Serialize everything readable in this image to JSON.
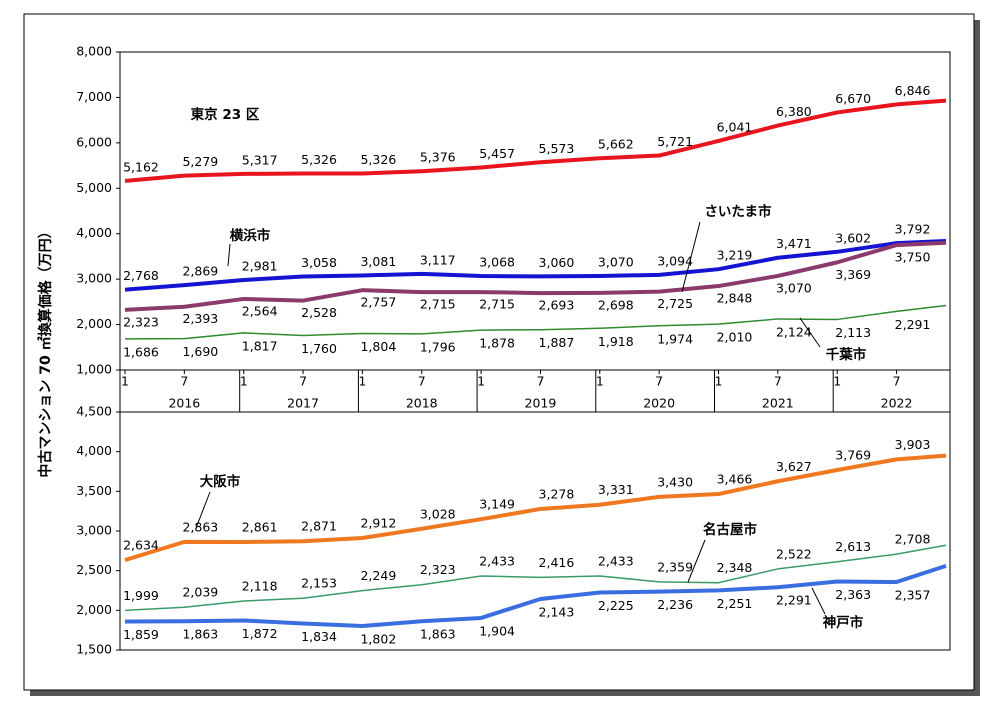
{
  "ylabel": "中古マンション 70 ㎡換算価格（万円）",
  "chart_data": [
    {
      "type": "line",
      "xlim": [
        "2016-01",
        "2022-12"
      ],
      "x": [
        "2016-01",
        "2016-07",
        "2017-01",
        "2017-07",
        "2018-01",
        "2018-07",
        "2019-01",
        "2019-07",
        "2020-01",
        "2020-07",
        "2021-01",
        "2021-07",
        "2022-01",
        "2022-07",
        "2022-12"
      ],
      "xticks": [
        {
          "value": "2016-01",
          "label": "1"
        },
        {
          "value": "2016-07",
          "label": "7"
        },
        {
          "value": "2017-01",
          "label": "1"
        },
        {
          "value": "2017-07",
          "label": "7"
        },
        {
          "value": "2018-01",
          "label": "1"
        },
        {
          "value": "2018-07",
          "label": "7"
        },
        {
          "value": "2019-01",
          "label": "1"
        },
        {
          "value": "2019-07",
          "label": "7"
        },
        {
          "value": "2020-01",
          "label": "1"
        },
        {
          "value": "2020-07",
          "label": "7"
        },
        {
          "value": "2021-01",
          "label": "1"
        },
        {
          "value": "2021-07",
          "label": "7"
        },
        {
          "value": "2022-01",
          "label": "1"
        },
        {
          "value": "2022-07",
          "label": "7"
        }
      ],
      "year_ticks": [
        {
          "value": "2016-01",
          "label": "2016"
        },
        {
          "value": "2017-01",
          "label": "2017"
        },
        {
          "value": "2018-01",
          "label": "2018"
        },
        {
          "value": "2019-01",
          "label": "2019"
        },
        {
          "value": "2020-01",
          "label": "2020"
        },
        {
          "value": "2021-01",
          "label": "2021"
        },
        {
          "value": "2022-01",
          "label": "2022"
        }
      ],
      "ylim": [
        1000,
        8000
      ],
      "yticks": [
        {
          "value": 1000,
          "label": "1,000"
        },
        {
          "value": 2000,
          "label": "2,000"
        },
        {
          "value": 3000,
          "label": "3,000"
        },
        {
          "value": 4000,
          "label": "4,000"
        },
        {
          "value": 5000,
          "label": "5,000"
        },
        {
          "value": 6000,
          "label": "6,000"
        },
        {
          "value": 7000,
          "label": "7,000"
        },
        {
          "value": 8000,
          "label": "8,000"
        }
      ],
      "series": [
        {
          "name": "東京 23 区",
          "color": "#e8141e",
          "width": 4,
          "values": [
            5162,
            5279,
            5317,
            5326,
            5326,
            5376,
            5457,
            5573,
            5662,
            5721,
            6041,
            6380,
            6670,
            6846,
            6930
          ],
          "value_labels": [
            "5,162",
            "5,279",
            "5,317",
            "5,326",
            "5,326",
            "5,376",
            "5,457",
            "5,573",
            "5,662",
            "5,721",
            "6,041",
            "6,380",
            "6,670",
            "6,846",
            null
          ]
        },
        {
          "name": "横浜市",
          "color": "#1414d2",
          "width": 4,
          "values": [
            2768,
            2869,
            2981,
            3058,
            3081,
            3117,
            3068,
            3060,
            3070,
            3094,
            3219,
            3471,
            3602,
            3792,
            3840
          ],
          "value_labels": [
            "2,768",
            "2,869",
            "2,981",
            "3,058",
            "3,081",
            "3,117",
            "3,068",
            "3,060",
            "3,070",
            "3,094",
            "3,219",
            "3,471",
            "3,602",
            "3,792",
            null
          ]
        },
        {
          "name": "さいたま市",
          "color": "#8b3a6b",
          "width": 4,
          "values": [
            2323,
            2393,
            2564,
            2528,
            2757,
            2715,
            2715,
            2693,
            2698,
            2725,
            2848,
            3070,
            3369,
            3750,
            3800
          ],
          "value_labels": [
            "2,323",
            "2,393",
            "2,564",
            "2,528",
            "2,757",
            "2,715",
            "2,715",
            "2,693",
            "2,698",
            "2,725",
            "2,848",
            "3,070",
            "3,369",
            "3,750",
            null
          ]
        },
        {
          "name": "千葉市",
          "color": "#2e8b2e",
          "width": 1.5,
          "values": [
            1686,
            1690,
            1817,
            1760,
            1804,
            1796,
            1878,
            1887,
            1918,
            1974,
            2010,
            2124,
            2113,
            2291,
            2420
          ],
          "value_labels": [
            "1,686",
            "1,690",
            "1,817",
            "1,760",
            "1,804",
            "1,796",
            "1,878",
            "1,887",
            "1,918",
            "1,974",
            "2,010",
            "2,124",
            "2,113",
            "2,291",
            null
          ]
        }
      ]
    },
    {
      "type": "line",
      "xlim": [
        "2016-01",
        "2022-12"
      ],
      "x": [
        "2016-01",
        "2016-07",
        "2017-01",
        "2017-07",
        "2018-01",
        "2018-07",
        "2019-01",
        "2019-07",
        "2020-01",
        "2020-07",
        "2021-01",
        "2021-07",
        "2022-01",
        "2022-07",
        "2022-12"
      ],
      "ylim": [
        1500,
        4500
      ],
      "yticks": [
        {
          "value": 1500,
          "label": "1,500"
        },
        {
          "value": 2000,
          "label": "2,000"
        },
        {
          "value": 2500,
          "label": "2,500"
        },
        {
          "value": 3000,
          "label": "3,000"
        },
        {
          "value": 3500,
          "label": "3,500"
        },
        {
          "value": 4000,
          "label": "4,000"
        },
        {
          "value": 4500,
          "label": "4,500"
        }
      ],
      "series": [
        {
          "name": "大阪市",
          "color": "#f07820",
          "width": 4,
          "values": [
            2634,
            2863,
            2861,
            2871,
            2912,
            3028,
            3149,
            3278,
            3331,
            3430,
            3466,
            3627,
            3769,
            3903,
            3950
          ],
          "value_labels": [
            "2,634",
            "2,863",
            "2,861",
            "2,871",
            "2,912",
            "3,028",
            "3,149",
            "3,278",
            "3,331",
            "3,430",
            "3,466",
            "3,627",
            "3,769",
            "3,903",
            null
          ]
        },
        {
          "name": "名古屋市",
          "color": "#3a9a6a",
          "width": 1.5,
          "values": [
            1999,
            2039,
            2118,
            2153,
            2249,
            2323,
            2433,
            2416,
            2433,
            2359,
            2348,
            2522,
            2613,
            2708,
            2820
          ],
          "value_labels": [
            "1,999",
            "2,039",
            "2,118",
            "2,153",
            "2,249",
            "2,323",
            "2,433",
            "2,416",
            "2,433",
            "2,359",
            "2,348",
            "2,522",
            "2,613",
            "2,708",
            null
          ]
        },
        {
          "name": "神戸市",
          "color": "#3a6ee0",
          "width": 4,
          "values": [
            1859,
            1863,
            1872,
            1834,
            1802,
            1863,
            1904,
            2143,
            2225,
            2236,
            2251,
            2291,
            2363,
            2357,
            2560
          ],
          "value_labels": [
            "1,859",
            "1,863",
            "1,872",
            "1,834",
            "1,802",
            "1,863",
            "1,904",
            "2,143",
            "2,225",
            "2,236",
            "2,251",
            "2,291",
            "2,363",
            "2,357",
            null
          ]
        }
      ]
    }
  ]
}
